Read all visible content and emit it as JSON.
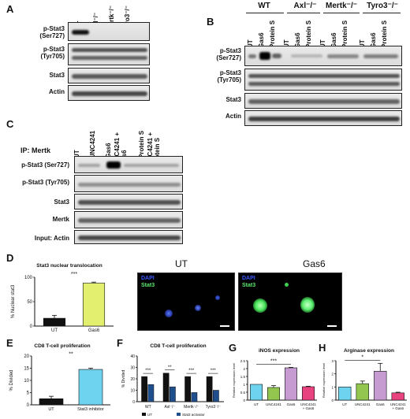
{
  "panels": {
    "A": "A",
    "B": "B",
    "C": "C",
    "D": "D",
    "E": "E",
    "F": "F",
    "G": "G",
    "H": "H"
  },
  "panelA": {
    "columns": [
      "WT",
      "Axl⁻/⁻",
      "Mertk⁻/⁻",
      "Tyro3⁻/⁻"
    ],
    "rows": [
      "p-Stat3 (Ser727)",
      "p-Stat3 (Tyr705)",
      "Stat3",
      "Actin"
    ]
  },
  "panelB": {
    "groups": [
      "WT",
      "Axl⁻/⁻",
      "Mertk⁻/⁻",
      "Tyro3⁻/⁻"
    ],
    "lanes": [
      "UT",
      "Gas6",
      "Protein S"
    ],
    "rows": [
      "p-Stat3 (Ser727)",
      "p-Stat3 (Tyr705)",
      "Stat3",
      "Actin"
    ]
  },
  "panelC": {
    "ip": "IP: Mertk",
    "lanes": [
      "UT",
      "UNC4241",
      "Gas6",
      "UNC4241 + Gas6",
      "Protein S",
      "UNC4241 + Protein S"
    ],
    "rows": [
      "p-Stat3 (Ser727)",
      "p-Stat3 (Tyr705)",
      "Stat3",
      "Mertk",
      "Input: Actin"
    ]
  },
  "panelD": {
    "micro_labels": [
      "UT",
      "Gas6"
    ],
    "dapi": "DAPI",
    "stat3": "Stat3"
  },
  "colors": {
    "gas6_yellow": "#e3ef6f",
    "cyan": "#6ed3ee",
    "green": "#92c64f",
    "purple": "#c59bd2",
    "pink": "#e8437f",
    "black": "#111111",
    "blue": "#1f4e8c",
    "dapi_blue": "#3a5cff",
    "stat3_green": "#5ee870"
  },
  "chart_data": [
    {
      "id": "D",
      "type": "bar",
      "title": "Stat3 nuclear translocation",
      "ylabel": "% Nuclear stat3",
      "categories": [
        "UT",
        "Gas6"
      ],
      "values": [
        16,
        88
      ],
      "errors": [
        6,
        2
      ],
      "ylim": [
        0,
        100
      ],
      "yticks": [
        0,
        50,
        100
      ],
      "annotations": [
        "***"
      ]
    },
    {
      "id": "E",
      "type": "bar",
      "title": "CD8 T-cell proliferation",
      "ylabel": "% Divided",
      "categories": [
        "UT",
        "Stat3 inhibitor"
      ],
      "values": [
        2.5,
        14.5
      ],
      "errors": [
        1,
        0.5
      ],
      "ylim": [
        0,
        20
      ],
      "yticks": [
        0,
        5,
        10,
        15,
        20
      ],
      "annotations": [
        "**"
      ]
    },
    {
      "id": "F",
      "type": "bar",
      "title": "CD8 T-cell proliferation",
      "ylabel": "% Divided",
      "categories": [
        "WT",
        "Axl⁻/⁻",
        "Mertk⁻/⁻",
        "Tyro3⁻/⁻"
      ],
      "series": [
        {
          "name": "UT",
          "values": [
            22,
            25,
            22,
            22
          ]
        },
        {
          "name": "Stat3 activator",
          "values": [
            15,
            13,
            8,
            10
          ]
        }
      ],
      "ylim": [
        0,
        40
      ],
      "yticks": [
        0,
        10,
        20,
        30,
        40
      ],
      "annotations": [
        "***",
        "**",
        "***",
        "***"
      ]
    },
    {
      "id": "G",
      "type": "bar",
      "title": "iNOS expression",
      "ylabel": "Relative expression level",
      "categories": [
        "UT",
        "UNC4241",
        "Gas6",
        "UNC4241 + Gas6"
      ],
      "values": [
        1.0,
        0.8,
        2.05,
        0.85
      ],
      "errors": [
        0,
        0.12,
        0.03,
        0.03
      ],
      "ylim": [
        0,
        2.5
      ],
      "yticks": [
        0,
        0.5,
        1,
        1.5,
        2,
        2.5
      ],
      "annotations": [
        "***"
      ]
    },
    {
      "id": "H",
      "type": "bar",
      "title": "Arginase expression",
      "ylabel": "Relative expression level",
      "categories": [
        "UT",
        "UNC4241",
        "Gas6",
        "UNC4241 + Gas6"
      ],
      "values": [
        1.0,
        1.25,
        2.2,
        0.55
      ],
      "errors": [
        0,
        0.2,
        0.6,
        0.05
      ],
      "ylim": [
        0,
        3
      ],
      "yticks": [
        0,
        1,
        2,
        3
      ],
      "annotations": [
        "*"
      ]
    }
  ]
}
